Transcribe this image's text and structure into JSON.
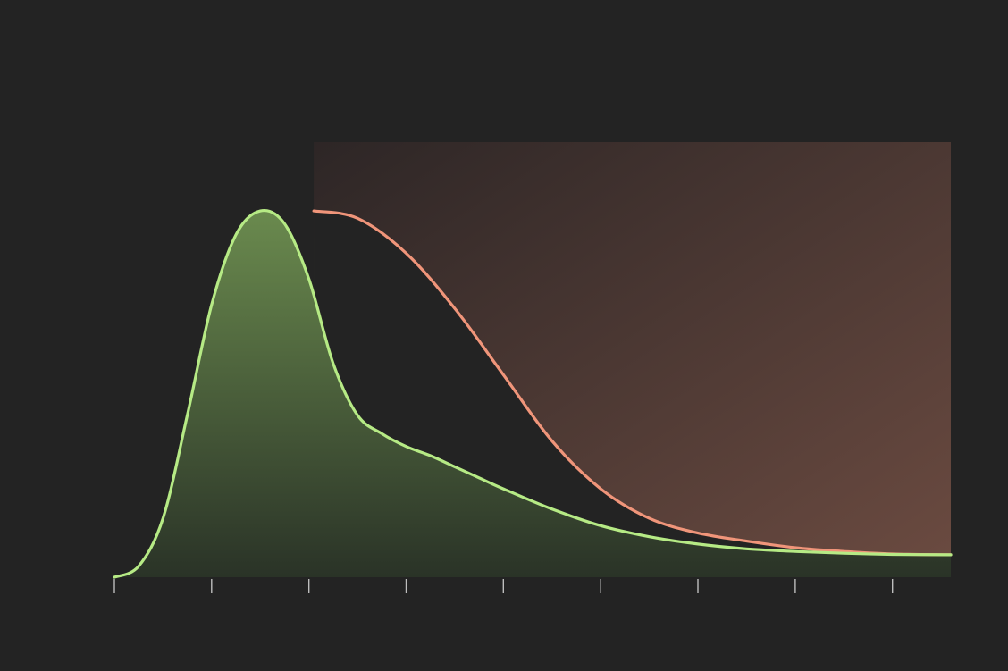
{
  "colors": {
    "background": "#232323",
    "green_series": "#b6ea85",
    "green_fill_top": "#6a8a4e",
    "green_fill_bottom": "#2a3327",
    "salmon_series": "#f0957a",
    "salmon_fill_top": "#2d2626",
    "salmon_fill_bottom": "#6a4a40",
    "tick": "#bdbdbd"
  },
  "chart_data": {
    "type": "area",
    "title": "",
    "xlabel": "",
    "ylabel": "",
    "grid": false,
    "legend": "none",
    "xlim": [
      0,
      8.6
    ],
    "ylim": [
      0,
      1.0
    ],
    "x_ticks": [
      0,
      1,
      2,
      3,
      4,
      5,
      6,
      7,
      8
    ],
    "x_tick_labels": [],
    "series": [
      {
        "key": "green",
        "style": "line-with-area-fill",
        "x": [
          0,
          0.25,
          0.5,
          0.75,
          1.0,
          1.25,
          1.5,
          1.75,
          2.0,
          2.25,
          2.5,
          2.75,
          3.0,
          3.25,
          3.5,
          3.75,
          4.0,
          4.5,
          5.0,
          5.5,
          6.0,
          6.5,
          7.0,
          7.5,
          8.0,
          8.6
        ],
        "y": [
          0.0,
          0.03,
          0.16,
          0.44,
          0.74,
          0.93,
          0.995,
          0.96,
          0.81,
          0.58,
          0.44,
          0.39,
          0.355,
          0.33,
          0.3,
          0.27,
          0.24,
          0.185,
          0.14,
          0.11,
          0.09,
          0.077,
          0.07,
          0.065,
          0.062,
          0.061
        ]
      },
      {
        "key": "salmon",
        "style": "line-with-shaded-region",
        "x": [
          2.05,
          2.5,
          3.0,
          3.5,
          4.0,
          4.5,
          5.0,
          5.5,
          6.0,
          6.5,
          7.0,
          7.5,
          8.0,
          8.6
        ],
        "y": [
          0.995,
          0.975,
          0.88,
          0.73,
          0.55,
          0.37,
          0.24,
          0.16,
          0.12,
          0.098,
          0.08,
          0.07,
          0.063,
          0.061
        ]
      }
    ]
  }
}
